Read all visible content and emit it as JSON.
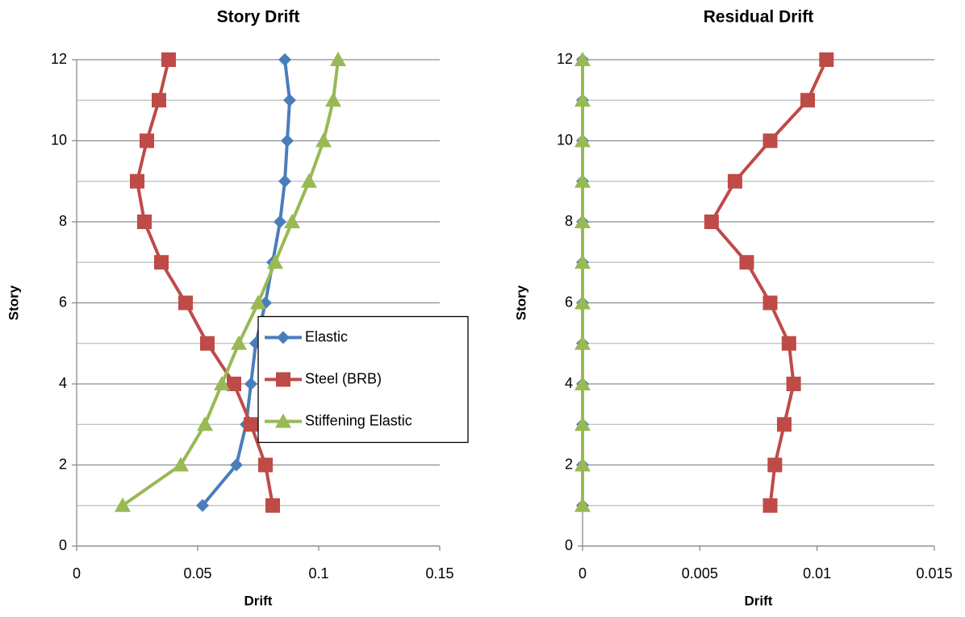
{
  "chart_data": [
    {
      "type": "line",
      "title": "Story Drift",
      "x_label": "Drift",
      "y_label": "Story",
      "y": [
        1,
        2,
        3,
        4,
        5,
        6,
        7,
        8,
        9,
        10,
        11,
        12
      ],
      "series": [
        {
          "name": "Elastic",
          "color": "#4a7ebb",
          "marker": "diamond",
          "values": [
            0.052,
            0.066,
            0.07,
            0.072,
            0.074,
            0.078,
            0.081,
            0.084,
            0.086,
            0.087,
            0.088,
            0.086
          ]
        },
        {
          "name": "Steel (BRB)",
          "color": "#be4b48",
          "marker": "square",
          "values": [
            0.081,
            0.078,
            0.072,
            0.065,
            0.054,
            0.045,
            0.035,
            0.028,
            0.025,
            0.029,
            0.034,
            0.038
          ]
        },
        {
          "name": "Stiffening Elastic",
          "color": "#98b954",
          "marker": "triangle",
          "values": [
            0.019,
            0.043,
            0.053,
            0.06,
            0.067,
            0.075,
            0.082,
            0.089,
            0.096,
            0.102,
            0.106,
            0.108
          ]
        }
      ],
      "xlim": [
        0,
        0.15
      ],
      "xticks": [
        0,
        0.05,
        0.1,
        0.15
      ],
      "ylim": [
        0,
        12
      ],
      "yticks": [
        0,
        2,
        4,
        6,
        8,
        10,
        12
      ],
      "minor_yticks": [
        1,
        3,
        5,
        7,
        9,
        11
      ],
      "grid": true,
      "legend": "center right"
    },
    {
      "type": "line",
      "title": "Residual Drift",
      "x_label": "Drift",
      "y_label": "Story",
      "y": [
        1,
        2,
        3,
        4,
        5,
        6,
        7,
        8,
        9,
        10,
        11,
        12
      ],
      "series": [
        {
          "color": "#4a7ebb",
          "marker": "diamond",
          "values": [
            0,
            0,
            0,
            0,
            0,
            0,
            0,
            0,
            0,
            0,
            0,
            0
          ]
        },
        {
          "color": "#be4b48",
          "marker": "square",
          "values": [
            0.008,
            0.0082,
            0.0086,
            0.009,
            0.0088,
            0.008,
            0.007,
            0.0055,
            0.0065,
            0.008,
            0.0096,
            0.0104
          ]
        },
        {
          "color": "#98b954",
          "marker": "triangle",
          "values": [
            0,
            0,
            0,
            0,
            0,
            0,
            0,
            0,
            0,
            0,
            0,
            0
          ]
        }
      ],
      "xlim": [
        0,
        0.015
      ],
      "xticks": [
        0,
        0.005,
        0.01,
        0.015
      ],
      "ylim": [
        0,
        12
      ],
      "yticks": [
        0,
        2,
        4,
        6,
        8,
        10,
        12
      ],
      "minor_yticks": [
        1,
        3,
        5,
        7,
        9,
        11
      ],
      "grid": true
    }
  ]
}
